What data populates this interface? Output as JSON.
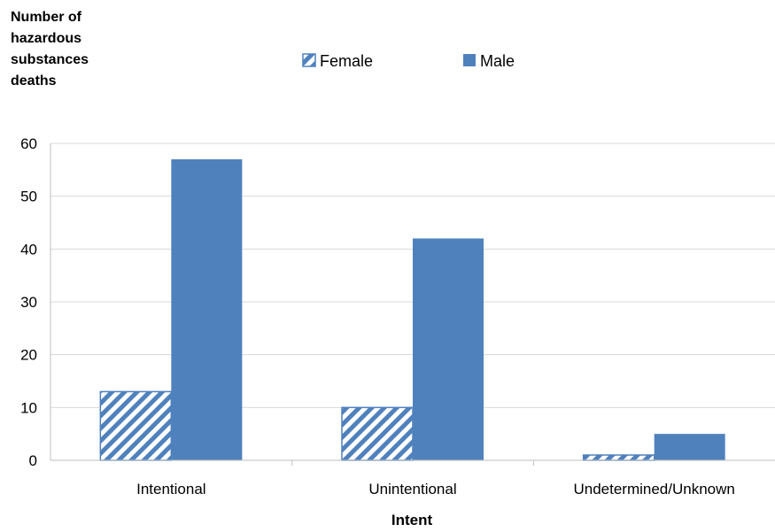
{
  "chart_data": {
    "type": "bar",
    "ylabel_lines": [
      "Number of",
      "hazardous",
      "substances",
      "deaths"
    ],
    "xlabel": "Intent",
    "categories": [
      "Intentional",
      "Unintentional",
      "Undetermined/Unknown"
    ],
    "series": [
      {
        "name": "Female",
        "values": [
          13,
          10,
          1
        ],
        "color": "#4f81bd",
        "pattern": "diagonal-stripe"
      },
      {
        "name": "Male",
        "values": [
          57,
          42,
          5
        ],
        "color": "#4f81bd",
        "pattern": "solid"
      }
    ],
    "ylim": [
      0,
      60
    ],
    "yticks": [
      0,
      10,
      20,
      30,
      40,
      50,
      60
    ],
    "grid": true,
    "legend_position": "top-center",
    "colors": {
      "gridline": "#d9d9d9",
      "axis": "#bfbfbf"
    }
  }
}
